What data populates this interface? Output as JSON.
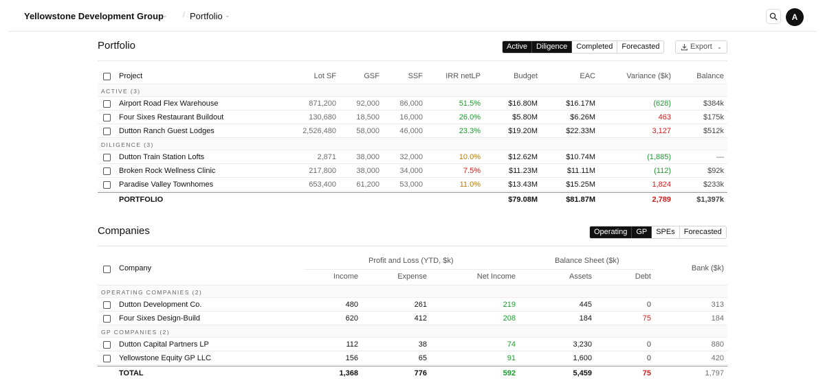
{
  "topbar": {
    "brand": "Yellowstone Development Group",
    "brand_caret": "⌄",
    "separator": "/",
    "crumb": "Portfolio",
    "crumb_caret": "⌄",
    "avatar": "A"
  },
  "portfolio": {
    "title": "Portfolio",
    "filters": [
      "Active",
      "Diligence",
      "Completed",
      "Forecasted"
    ],
    "active_filters": [
      "Active",
      "Diligence"
    ],
    "export_label": "Export",
    "export_caret": "⌄",
    "columns": {
      "project": "Project",
      "lot_sf": "Lot SF",
      "gsf": "GSF",
      "ssf": "SSF",
      "irr": "IRR netLP",
      "budget": "Budget",
      "eac": "EAC",
      "variance": "Variance ($k)",
      "balance": "Balance"
    },
    "groups": [
      {
        "label": "ACTIVE (3)",
        "rows": [
          {
            "project": "Airport Road Flex Warehouse",
            "lot_sf": "871,200",
            "gsf": "92,000",
            "ssf": "86,000",
            "irr": "51.5%",
            "irr_tone": "green",
            "budget": "$16.80M",
            "eac": "$16.17M",
            "variance": "(628)",
            "variance_tone": "green",
            "balance": "$384k"
          },
          {
            "project": "Four Sixes Restaurant Buildout",
            "lot_sf": "130,680",
            "gsf": "18,500",
            "ssf": "16,000",
            "irr": "26.0%",
            "irr_tone": "green",
            "budget": "$5.80M",
            "eac": "$6.26M",
            "variance": "463",
            "variance_tone": "red",
            "balance": "$175k"
          },
          {
            "project": "Dutton Ranch Guest Lodges",
            "lot_sf": "2,526,480",
            "gsf": "58,000",
            "ssf": "46,000",
            "irr": "23.3%",
            "irr_tone": "green",
            "budget": "$19.20M",
            "eac": "$22.33M",
            "variance": "3,127",
            "variance_tone": "red",
            "balance": "$512k"
          }
        ]
      },
      {
        "label": "DILIGENCE (3)",
        "rows": [
          {
            "project": "Dutton Train Station Lofts",
            "lot_sf": "2,871",
            "gsf": "38,000",
            "ssf": "32,000",
            "irr": "10.0%",
            "irr_tone": "amber",
            "budget": "$12.62M",
            "eac": "$10.74M",
            "variance": "(1,885)",
            "variance_tone": "green",
            "balance": "—"
          },
          {
            "project": "Broken Rock Wellness Clinic",
            "lot_sf": "217,800",
            "gsf": "38,000",
            "ssf": "34,000",
            "irr": "7.5%",
            "irr_tone": "red",
            "budget": "$11.23M",
            "eac": "$11.11M",
            "variance": "(112)",
            "variance_tone": "green",
            "balance": "$92k"
          },
          {
            "project": "Paradise Valley Townhomes",
            "lot_sf": "653,400",
            "gsf": "61,200",
            "ssf": "53,000",
            "irr": "11.0%",
            "irr_tone": "amber",
            "budget": "$13.43M",
            "eac": "$15.25M",
            "variance": "1,824",
            "variance_tone": "red",
            "balance": "$233k"
          }
        ]
      }
    ],
    "total": {
      "label": "PORTFOLIO",
      "budget": "$79.08M",
      "eac": "$81.87M",
      "variance": "2,789",
      "balance": "$1,397k"
    }
  },
  "companies": {
    "title": "Companies",
    "filters": [
      "Operating",
      "GP",
      "SPEs",
      "Forecasted"
    ],
    "active_filters": [
      "Operating",
      "GP"
    ],
    "columns": {
      "company": "Company",
      "pl_group": "Profit and Loss (YTD, $k)",
      "bs_group": "Balance Sheet ($k)",
      "bank": "Bank ($k)",
      "income": "Income",
      "expense": "Expense",
      "net_income": "Net Income",
      "assets": "Assets",
      "debt": "Debt"
    },
    "groups": [
      {
        "label": "OPERATING COMPANIES (2)",
        "rows": [
          {
            "company": "Dutton Development Co.",
            "income": "480",
            "expense": "261",
            "net_income": "219",
            "assets": "445",
            "debt": "0",
            "debt_tone": "mid",
            "bank": "313"
          },
          {
            "company": "Four Sixes Design-Build",
            "income": "620",
            "expense": "412",
            "net_income": "208",
            "assets": "184",
            "debt": "75",
            "debt_tone": "red",
            "bank": "184"
          }
        ]
      },
      {
        "label": "GP COMPANIES (2)",
        "rows": [
          {
            "company": "Dutton Capital Partners LP",
            "income": "112",
            "expense": "38",
            "net_income": "74",
            "assets": "3,230",
            "debt": "0",
            "debt_tone": "mid",
            "bank": "880"
          },
          {
            "company": "Yellowstone Equity GP LLC",
            "income": "156",
            "expense": "65",
            "net_income": "91",
            "assets": "1,600",
            "debt": "0",
            "debt_tone": "mid",
            "bank": "420"
          }
        ]
      }
    ],
    "total": {
      "label": "TOTAL",
      "income": "1,368",
      "expense": "776",
      "net_income": "592",
      "assets": "5,459",
      "debt": "75",
      "bank": "1,797"
    }
  },
  "colors": {
    "green": "#1a9a2c",
    "red": "#d11a1a",
    "amber": "#b97a00",
    "dark": "#111111"
  }
}
